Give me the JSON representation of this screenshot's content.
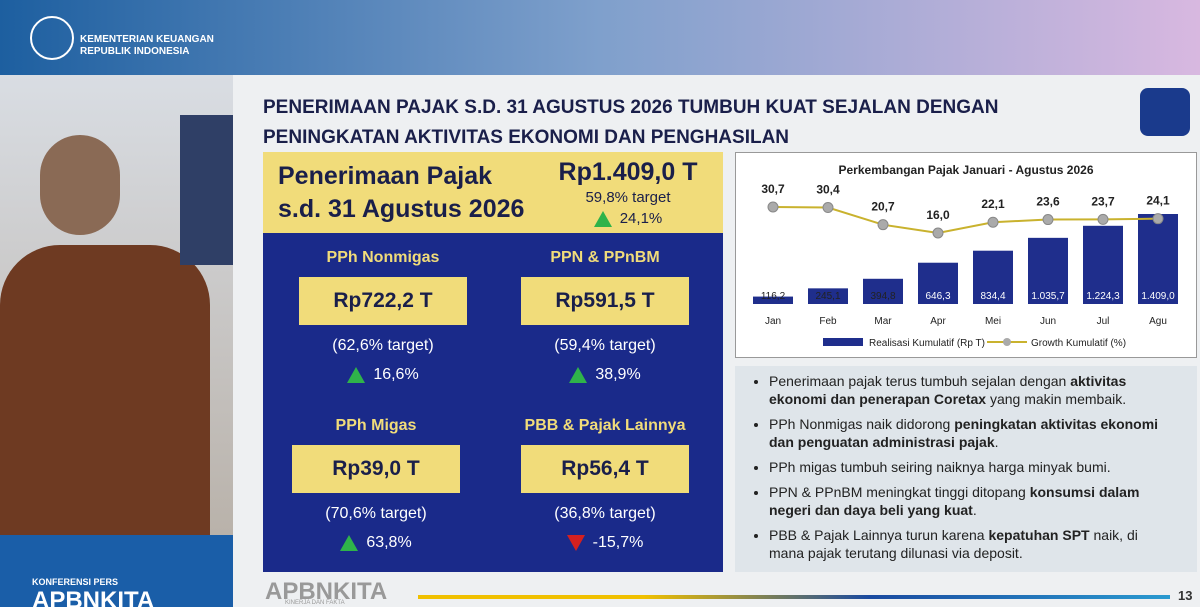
{
  "header": {
    "org": [
      "KEMENTERIAN KEUANGAN",
      "REPUBLIK INDONESIA"
    ]
  },
  "sidebar": {
    "label": "KONFERENSI PERS",
    "brand": "APBNKITA"
  },
  "slide": {
    "title": "PENERIMAAN PAJAK S.D. 31 AGUSTUS 2026 TUMBUH KUAT SEJALAN DENGAN PENINGKATAN AKTIVITAS EKONOMI DAN PENGHASILAN",
    "summary": {
      "label": "Penerimaan Pajak s.d. 31 Agustus 2026",
      "total": "Rp1.409,0 T",
      "target": "59,8% target",
      "growth": "24,1%",
      "direction": "up"
    },
    "cards": [
      {
        "name": "PPh Nonmigas",
        "amount": "Rp722,2 T",
        "target": "(62,6% target)",
        "growth": "16,6%",
        "direction": "up"
      },
      {
        "name": "PPN & PPnBM",
        "amount": "Rp591,5 T",
        "target": "(59,4% target)",
        "growth": "38,9%",
        "direction": "up"
      },
      {
        "name": "PPh Migas",
        "amount": "Rp39,0 T",
        "target": "(70,6% target)",
        "growth": "63,8%",
        "direction": "up"
      },
      {
        "name": "PBB & Pajak Lainnya",
        "amount": "Rp56,4 T",
        "target": "(36,8% target)",
        "growth": "-15,7%",
        "direction": "down"
      }
    ],
    "chart": {
      "type": "bar-line",
      "title": "Perkembangan Pajak Januari - Agustus 2026",
      "categories": [
        "Jan",
        "Feb",
        "Mar",
        "Apr",
        "Mei",
        "Jun",
        "Jul",
        "Agu"
      ],
      "series": [
        {
          "name": "Realisasi Kumulatif (Rp T)",
          "color": "#1f2e8c",
          "values": [
            116.2,
            245.1,
            394.8,
            646.3,
            834.4,
            1035.7,
            1224.3,
            1409.0
          ],
          "value_labels": [
            "116,2",
            "245,1",
            "394,8",
            "646,3",
            "834,4",
            "1.035,7",
            "1.224,3",
            "1.409,0"
          ]
        },
        {
          "name": "Growth Kumulatif (%)",
          "color": "#c9b22e",
          "values": [
            30.7,
            30.4,
            20.7,
            16.0,
            22.1,
            23.6,
            23.7,
            24.1
          ],
          "value_labels": [
            "30,7",
            "30,4",
            "20,7",
            "16,0",
            "22,1",
            "23,6",
            "23,7",
            "24,1"
          ]
        }
      ]
    },
    "bullets": [
      [
        {
          "text": "Penerimaan pajak terus tumbuh sejalan dengan ",
          "bold": false
        },
        {
          "text": "aktivitas ekonomi dan penerapan Coretax",
          "bold": true
        },
        {
          "text": " yang makin membaik.",
          "bold": false
        }
      ],
      [
        {
          "text": "PPh Nonmigas naik didorong ",
          "bold": false
        },
        {
          "text": "peningkatan aktivitas ekonomi dan penguatan administrasi pajak",
          "bold": true
        },
        {
          "text": ".",
          "bold": false
        }
      ],
      [
        {
          "text": "PPh migas tumbuh seiring naiknya harga minyak bumi.",
          "bold": false
        }
      ],
      [
        {
          "text": "PPN & PPnBM meningkat tinggi ditopang ",
          "bold": false
        },
        {
          "text": "konsumsi dalam negeri dan daya beli yang kuat",
          "bold": true
        },
        {
          "text": ".",
          "bold": false
        }
      ],
      [
        {
          "text": "PBB & Pajak Lainnya turun karena ",
          "bold": false
        },
        {
          "text": "kepatuhan SPT",
          "bold": true
        },
        {
          "text": " naik, di mana pajak terutang dilunasi via deposit.",
          "bold": false
        }
      ]
    ],
    "footer": {
      "brand": "APBNKITA",
      "tagline": "KINERJA DAN FAKTA",
      "page": "13"
    }
  }
}
